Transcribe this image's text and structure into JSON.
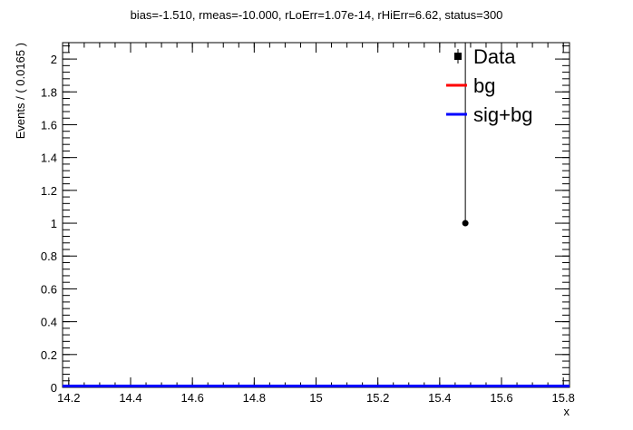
{
  "chart_data": {
    "type": "line",
    "title": "bias=-1.510, rmeas=-10.000, rLoErr=1.07e-14, rHiErr=6.62, status=300",
    "xlabel": "x",
    "ylabel": "Events / ( 0.0165 )",
    "xlim": [
      14.18,
      15.82
    ],
    "ylim": [
      0,
      2.1
    ],
    "x_ticks": [
      "14.2",
      "14.4",
      "14.6",
      "14.8",
      "15",
      "15.2",
      "15.4",
      "15.6",
      "15.8"
    ],
    "x_tick_values": [
      14.2,
      14.4,
      14.6,
      14.8,
      15.0,
      15.2,
      15.4,
      15.6,
      15.8
    ],
    "y_ticks": [
      "0",
      "0.2",
      "0.4",
      "0.6",
      "0.8",
      "1",
      "1.2",
      "1.4",
      "1.6",
      "1.8",
      "2"
    ],
    "y_tick_values": [
      0,
      0.2,
      0.4,
      0.6,
      0.8,
      1.0,
      1.2,
      1.4,
      1.6,
      1.8,
      2.0
    ],
    "legend_position": "top-right",
    "series": [
      {
        "name": "Data",
        "kind": "points",
        "color": "#000000",
        "points": [
          {
            "x": 15.483,
            "y": 1,
            "err_low": 1,
            "err_high": 2.1
          }
        ]
      },
      {
        "name": "bg",
        "kind": "line",
        "color": "#ff0000",
        "x": [
          14.18,
          15.82
        ],
        "y": [
          0.008,
          0.008
        ]
      },
      {
        "name": "sig+bg",
        "kind": "line",
        "color": "#0000ff",
        "x": [
          14.18,
          15.82
        ],
        "y": [
          0.008,
          0.008
        ]
      }
    ]
  }
}
